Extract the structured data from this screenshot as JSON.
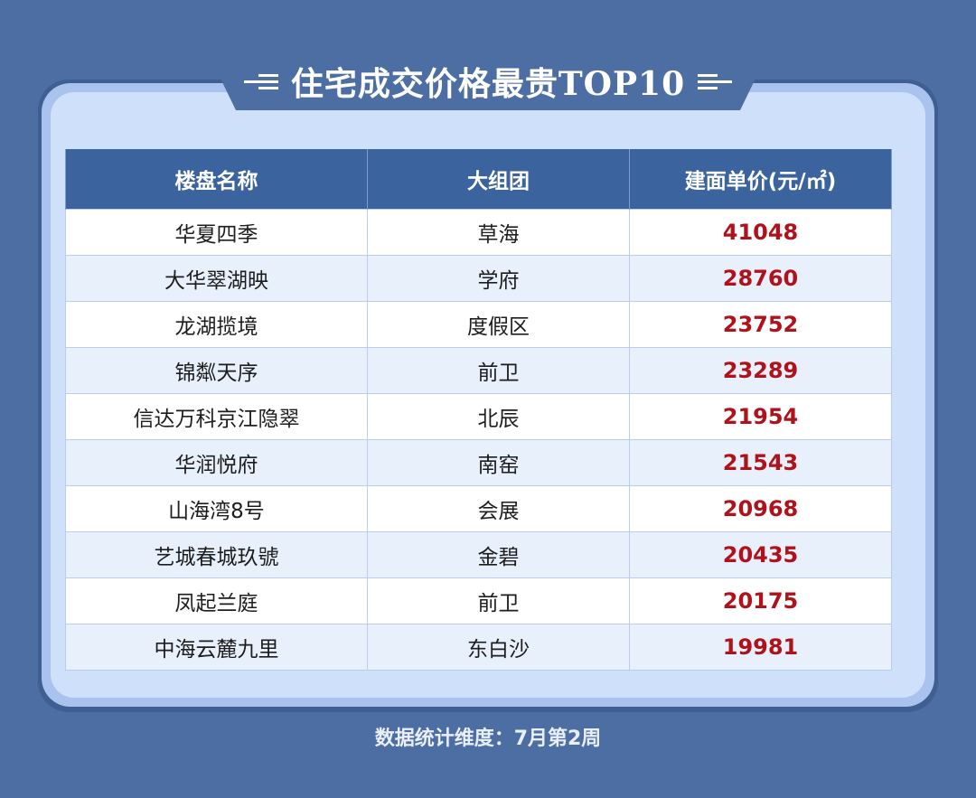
{
  "title": "住宅成交价格最贵TOP10",
  "table": {
    "headers": [
      "楼盘名称",
      "大组团",
      "建面单价(元/㎡)"
    ],
    "rows": [
      {
        "name": "华夏四季",
        "district": "草海",
        "price": "41048"
      },
      {
        "name": "大华翠湖映",
        "district": "学府",
        "price": "28760"
      },
      {
        "name": "龙湖揽境",
        "district": "度假区",
        "price": "23752"
      },
      {
        "name": "锦粼天序",
        "district": "前卫",
        "price": "23289"
      },
      {
        "name": "信达万科京江隐翠",
        "district": "北辰",
        "price": "21954"
      },
      {
        "name": "华润悦府",
        "district": "南窑",
        "price": "21543"
      },
      {
        "name": "山海湾8号",
        "district": "会展",
        "price": "20968"
      },
      {
        "name": "艺城春城玖號",
        "district": "金碧",
        "price": "20435"
      },
      {
        "name": "凤起兰庭",
        "district": "前卫",
        "price": "20175"
      },
      {
        "name": "中海云麓九里",
        "district": "东白沙",
        "price": "19981"
      }
    ]
  },
  "footer": "数据统计维度：7月第2周",
  "colors": {
    "background": "#4d6ea3",
    "header_bg": "#3b649e",
    "price_text": "#b0121b",
    "card": "#cfe0fb"
  }
}
